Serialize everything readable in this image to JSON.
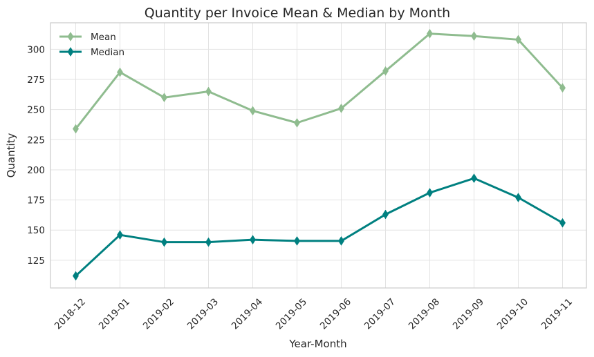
{
  "chart_data": {
    "type": "line",
    "title": "Quantity per Invoice Mean & Median by Month",
    "xlabel": "Year-Month",
    "ylabel": "Quantity",
    "categories": [
      "2018-12",
      "2019-01",
      "2019-02",
      "2019-03",
      "2019-04",
      "2019-05",
      "2019-06",
      "2019-07",
      "2019-08",
      "2019-09",
      "2019-10",
      "2019-11"
    ],
    "ylim": [
      102,
      322
    ],
    "yticks": [
      125,
      150,
      175,
      200,
      225,
      250,
      275,
      300
    ],
    "grid": true,
    "legend_position": "top-left",
    "series": [
      {
        "name": "Mean",
        "color": "#8fbc8f",
        "marker": "thin-diamond",
        "values": [
          234,
          281,
          260,
          265,
          249,
          239,
          251,
          282,
          313,
          311,
          308,
          268
        ]
      },
      {
        "name": "Median",
        "color": "#008080",
        "marker": "thin-diamond",
        "values": [
          112,
          146,
          140,
          140,
          142,
          141,
          141,
          163,
          181,
          193,
          177,
          156
        ]
      }
    ]
  }
}
